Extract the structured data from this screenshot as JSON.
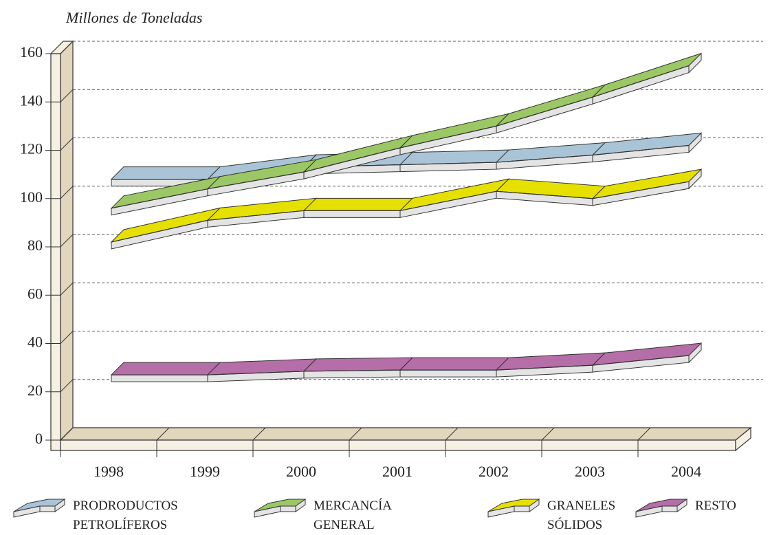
{
  "chart_data": {
    "type": "line",
    "y_label": "Millones de Toneladas",
    "categories": [
      "1998",
      "1999",
      "2000",
      "2001",
      "2002",
      "2003",
      "2004"
    ],
    "series": [
      {
        "name": "PRODRODUCTOS PETROLÍFEROS",
        "color": "#a9c4d6",
        "values": [
          108,
          108,
          113,
          114,
          115,
          118,
          122
        ]
      },
      {
        "name": "MERCANCÍA GENERAL",
        "color": "#9bc864",
        "values": [
          96,
          104,
          111,
          121,
          130,
          142,
          155
        ]
      },
      {
        "name": "GRANELES SÓLIDOS",
        "color": "#e6e000",
        "values": [
          82,
          91,
          95,
          95,
          103,
          100,
          107
        ]
      },
      {
        "name": "RESTO",
        "color": "#b56ea8",
        "values": [
          27,
          27,
          28.5,
          29,
          29,
          31,
          35
        ]
      }
    ],
    "ylim": [
      0,
      160
    ],
    "yticks": [
      0,
      20,
      40,
      60,
      80,
      100,
      120,
      140,
      160
    ],
    "grid": true
  }
}
